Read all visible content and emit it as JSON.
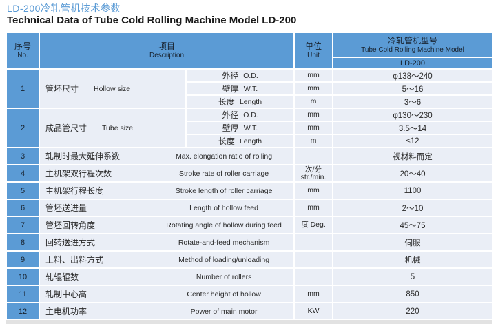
{
  "titles": {
    "zh": "LD-200冷轧管机技术参数",
    "en": "Technical Data of Tube Cold Rolling Machine Model LD-200"
  },
  "colors": {
    "header_blue": "#5B9BD5",
    "cell_bg": "#EAEEF6",
    "title_blue": "#5B9BD5"
  },
  "header": {
    "no_zh": "序号",
    "no_en": "No.",
    "desc_zh": "项目",
    "desc_en": "Description",
    "unit_zh": "单位",
    "unit_en": "Unit",
    "model_zh": "冷轧管机型号",
    "model_en": "Tube Cold Rolling Machine Model",
    "model_value": "LD-200"
  },
  "group_rows": [
    {
      "no": "1",
      "label_zh": "管坯尺寸",
      "label_en": "Hollow size",
      "subs": [
        {
          "zh": "外径",
          "en": "O.D.",
          "unit": "mm",
          "value": "φ138～240"
        },
        {
          "zh": "壁厚",
          "en": "W.T.",
          "unit": "mm",
          "value": "5～16"
        },
        {
          "zh": "长度",
          "en": "Length",
          "unit": "m",
          "value": "3～6"
        }
      ]
    },
    {
      "no": "2",
      "label_zh": "成品管尺寸",
      "label_en": "Tube size",
      "subs": [
        {
          "zh": "外径",
          "en": "O.D.",
          "unit": "mm",
          "value": "φ130～230"
        },
        {
          "zh": "壁厚",
          "en": "W.T.",
          "unit": "mm",
          "value": "3.5～14"
        },
        {
          "zh": "长度",
          "en": "Length",
          "unit": "m",
          "value": "≤12"
        }
      ]
    }
  ],
  "rows": [
    {
      "no": "3",
      "zh": "轧制时最大延伸系数",
      "en": "Max. elongation ratio of rolling",
      "unit_lines": [],
      "value": "视材料而定"
    },
    {
      "no": "4",
      "zh": "主机架双行程次数",
      "en": "Stroke rate of roller carriage",
      "unit_lines": [
        "次/分",
        "str./min."
      ],
      "value": "20～40"
    },
    {
      "no": "5",
      "zh": "主机架行程长度",
      "en": "Stroke length of roller carriage",
      "unit_lines": [
        "mm"
      ],
      "value": "1100"
    },
    {
      "no": "6",
      "zh": "管坯送进量",
      "en": "Length of hollow feed",
      "unit_lines": [
        "mm"
      ],
      "value": "2～10"
    },
    {
      "no": "7",
      "zh": "管坯回转角度",
      "en": "Rotating angle of hollow during feed",
      "unit_lines": [
        "度 Deg."
      ],
      "value": "45～75"
    },
    {
      "no": "8",
      "zh": "回转送进方式",
      "en": "Rotate-and-feed mechanism",
      "unit_lines": [],
      "value": "伺服"
    },
    {
      "no": "9",
      "zh": "上料、出料方式",
      "en": "Method of loading/unloading",
      "unit_lines": [],
      "value": "机械"
    },
    {
      "no": "10",
      "zh": "轧辊辊数",
      "en": "Number of rollers",
      "unit_lines": [],
      "value": "5"
    },
    {
      "no": "11",
      "zh": "轧制中心高",
      "en": "Center height of hollow",
      "unit_lines": [
        "mm"
      ],
      "value": "850"
    },
    {
      "no": "12",
      "zh": "主电机功率",
      "en": "Power of main motor",
      "unit_lines": [
        "KW"
      ],
      "value": "220"
    }
  ]
}
